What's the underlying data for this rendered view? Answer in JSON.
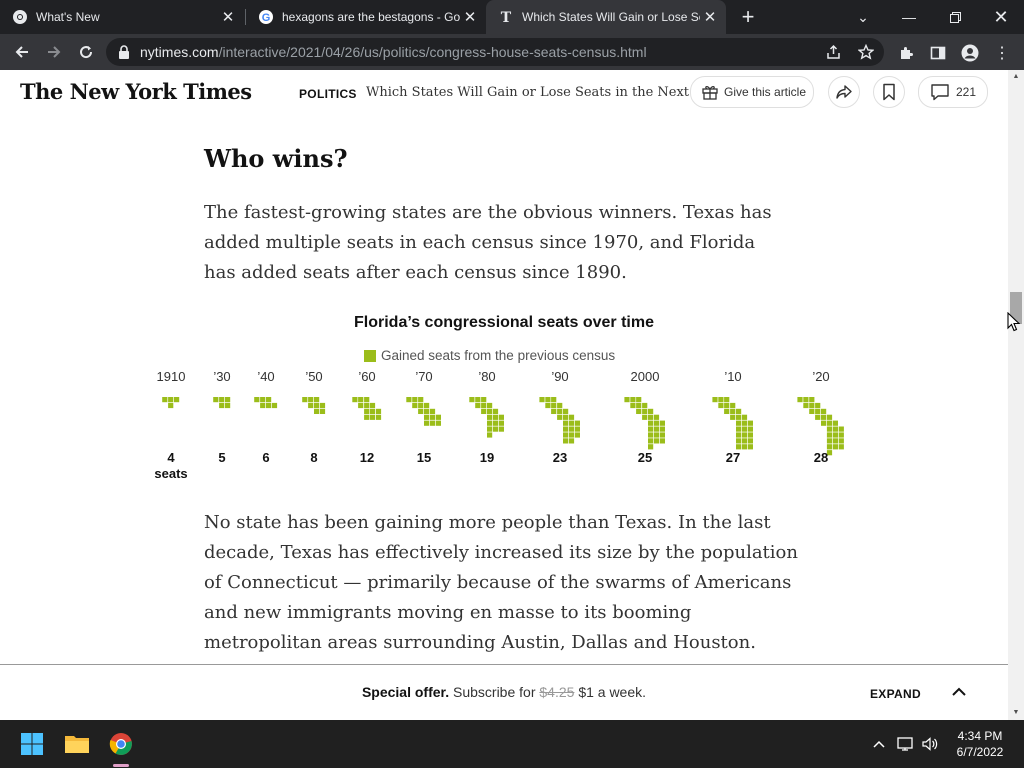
{
  "browser": {
    "tabs": [
      {
        "title": "What's New",
        "active": false
      },
      {
        "title": "hexagons are the bestagons - Goo",
        "active": false
      },
      {
        "title": "Which States Will Gain or Lose Se",
        "active": true
      }
    ],
    "url_host": "nytimes.com",
    "url_path": "/interactive/2021/04/26/us/politics/congress-house-seats-census.html"
  },
  "header": {
    "logo": "The New York Times",
    "section": "POLITICS",
    "headline": "Which States Will Gain or Lose Seats in the Next Congress",
    "gift_label": "Give this article",
    "comments_count": "221"
  },
  "article": {
    "subhead": "Who wins?",
    "para1": "The fastest-growing states are the obvious winners. Texas has added multiple seats in each census since 1970, and Florida has added seats after each census since 1890.",
    "para2": "No state has been gaining more people than Texas. In the last decade, Texas has effectively increased its size by the population of Connecticut — primarily because of the swarms of Americans and new immigrants moving en masse to its booming metropolitan areas surrounding Austin, Dallas and Houston."
  },
  "chart_data": {
    "type": "bar",
    "title": "Florida’s congressional seats over time",
    "legend": [
      "Gained seats from the previous census"
    ],
    "legend_color": "#9bbd1a",
    "categories": [
      "1910",
      "’30",
      "’40",
      "’50",
      "’60",
      "’70",
      "’80",
      "’90",
      "2000",
      "’10",
      "’20"
    ],
    "values": [
      4,
      5,
      6,
      8,
      12,
      15,
      19,
      23,
      25,
      27,
      28
    ],
    "value_labels": [
      "4",
      "5",
      "6",
      "8",
      "12",
      "15",
      "19",
      "23",
      "25",
      "27",
      "28"
    ],
    "unit_label": "seats",
    "xlabel": "",
    "ylabel": ""
  },
  "offer": {
    "prefix": "Special offer.",
    "text": "Subscribe for",
    "old_price": "$4.25",
    "new_price": "$1 a week.",
    "expand": "EXPAND"
  },
  "taskbar": {
    "time": "4:34 PM",
    "date": "6/7/2022"
  }
}
